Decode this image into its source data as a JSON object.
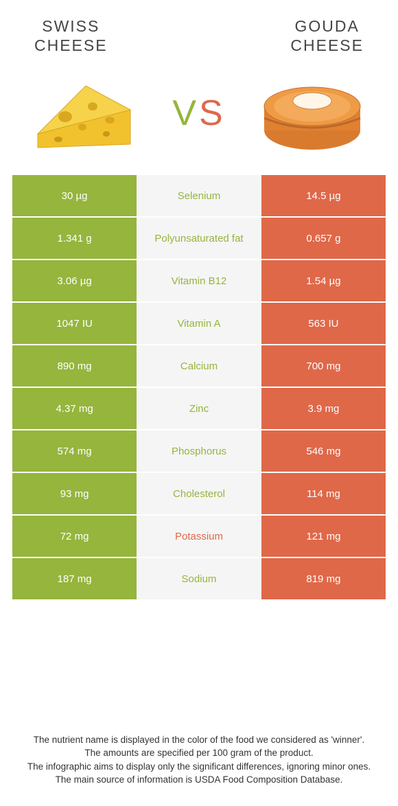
{
  "colors": {
    "swiss": "#95b53d",
    "gouda": "#df6849",
    "mid_bg": "#f5f5f5",
    "text": "#333333",
    "white": "#ffffff"
  },
  "header": {
    "left_title": "Swiss\ncheese",
    "right_title": "Gouda\ncheese",
    "vs_v": "V",
    "vs_s": "S"
  },
  "nutrients": [
    {
      "name": "Selenium",
      "left": "30 µg",
      "right": "14.5 µg",
      "winner": "swiss"
    },
    {
      "name": "Polyunsaturated fat",
      "left": "1.341 g",
      "right": "0.657 g",
      "winner": "swiss"
    },
    {
      "name": "Vitamin B12",
      "left": "3.06 µg",
      "right": "1.54 µg",
      "winner": "swiss"
    },
    {
      "name": "Vitamin A",
      "left": "1047 IU",
      "right": "563 IU",
      "winner": "swiss"
    },
    {
      "name": "Calcium",
      "left": "890 mg",
      "right": "700 mg",
      "winner": "swiss"
    },
    {
      "name": "Zinc",
      "left": "4.37 mg",
      "right": "3.9 mg",
      "winner": "swiss"
    },
    {
      "name": "Phosphorus",
      "left": "574 mg",
      "right": "546 mg",
      "winner": "swiss"
    },
    {
      "name": "Cholesterol",
      "left": "93 mg",
      "right": "114 mg",
      "winner": "swiss"
    },
    {
      "name": "Potassium",
      "left": "72 mg",
      "right": "121 mg",
      "winner": "gouda"
    },
    {
      "name": "Sodium",
      "left": "187 mg",
      "right": "819 mg",
      "winner": "swiss"
    }
  ],
  "footer": {
    "line1": "The nutrient name is displayed in the color of the food we considered as 'winner'.",
    "line2": "The amounts are specified per 100 gram of the product.",
    "line3": "The infographic aims to display only the significant differences, ignoring minor ones.",
    "line4": "The main source of information is USDA Food Composition Database."
  }
}
